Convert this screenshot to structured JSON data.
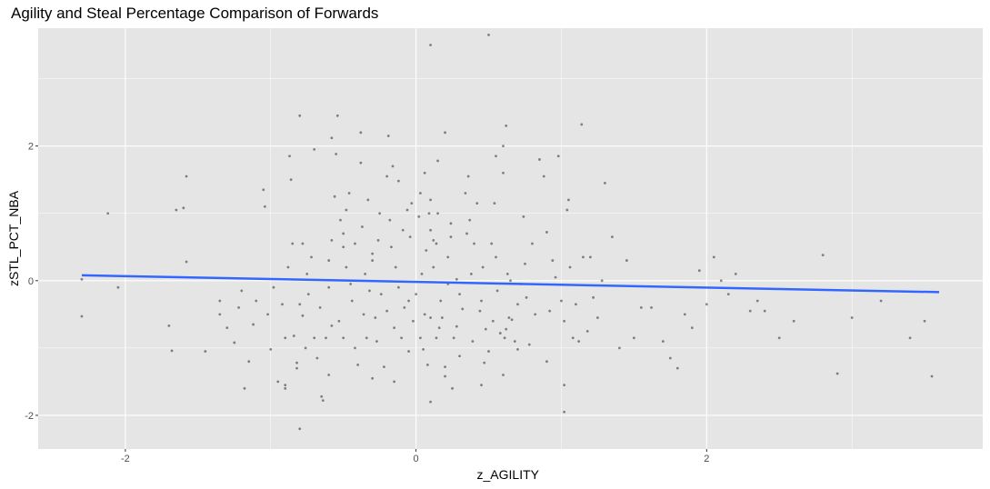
{
  "chart_data": {
    "type": "scatter",
    "title": "Agility and Steal Percentage Comparison of Forwards",
    "xlabel": "z_AGILITY",
    "ylabel": "zSTL_PCT_NBA",
    "xlim": [
      -2.6,
      3.9
    ],
    "ylim": [
      -2.5,
      3.75
    ],
    "x_ticks": [
      -2,
      0,
      2
    ],
    "y_ticks": [
      -2,
      0,
      2
    ],
    "grid": true,
    "point_color": "#000000",
    "trend_color": "#3366FF",
    "panel_color": "#E5E5E5",
    "trend_line": {
      "x": [
        -2.3,
        3.6
      ],
      "y": [
        0.08,
        -0.17
      ]
    },
    "points": [
      [
        -2.3,
        -0.53
      ],
      [
        -2.3,
        0.02
      ],
      [
        -2.12,
        1.0
      ],
      [
        -2.05,
        -0.1
      ],
      [
        -1.7,
        -0.67
      ],
      [
        -1.68,
        -1.04
      ],
      [
        -1.65,
        1.05
      ],
      [
        -1.6,
        1.08
      ],
      [
        -1.58,
        1.55
      ],
      [
        -1.58,
        0.28
      ],
      [
        -1.45,
        -1.05
      ],
      [
        -1.35,
        -0.3
      ],
      [
        -1.35,
        -0.5
      ],
      [
        -1.3,
        -0.7
      ],
      [
        -1.25,
        -0.92
      ],
      [
        -1.22,
        -0.4
      ],
      [
        -1.2,
        -0.15
      ],
      [
        -1.18,
        -1.6
      ],
      [
        -1.15,
        -1.2
      ],
      [
        -1.12,
        -0.65
      ],
      [
        -1.1,
        -0.3
      ],
      [
        -1.05,
        1.35
      ],
      [
        -1.04,
        1.1
      ],
      [
        -1.02,
        -0.5
      ],
      [
        -1.0,
        -1.02
      ],
      [
        -0.98,
        -0.1
      ],
      [
        -0.95,
        -1.5
      ],
      [
        -0.92,
        -0.35
      ],
      [
        -0.9,
        -0.85
      ],
      [
        -0.9,
        -1.55
      ],
      [
        -0.9,
        -1.6
      ],
      [
        -0.88,
        0.2
      ],
      [
        -0.87,
        1.85
      ],
      [
        -0.86,
        1.5
      ],
      [
        -0.85,
        0.55
      ],
      [
        -0.84,
        -0.82
      ],
      [
        -0.82,
        -1.22
      ],
      [
        -0.82,
        -1.3
      ],
      [
        -0.8,
        -0.35
      ],
      [
        -0.78,
        -0.52
      ],
      [
        -0.78,
        0.55
      ],
      [
        -0.76,
        -1.0
      ],
      [
        -0.75,
        0.1
      ],
      [
        -0.74,
        -0.2
      ],
      [
        -0.72,
        0.35
      ],
      [
        -0.7,
        -0.85
      ],
      [
        -0.68,
        -1.15
      ],
      [
        -0.66,
        -0.4
      ],
      [
        -0.65,
        -1.72
      ],
      [
        -0.64,
        -1.78
      ],
      [
        -0.62,
        -0.85
      ],
      [
        -0.6,
        -0.1
      ],
      [
        -0.6,
        0.3
      ],
      [
        -0.58,
        -0.67
      ],
      [
        -0.58,
        0.6
      ],
      [
        -0.56,
        1.25
      ],
      [
        -0.55,
        1.88
      ],
      [
        -0.54,
        2.45
      ],
      [
        -0.53,
        -0.6
      ],
      [
        -0.52,
        0.9
      ],
      [
        -0.5,
        0.7
      ],
      [
        -0.5,
        0.5
      ],
      [
        -0.5,
        -0.85
      ],
      [
        -0.48,
        0.2
      ],
      [
        -0.48,
        1.05
      ],
      [
        -0.46,
        1.3
      ],
      [
        -0.45,
        -0.05
      ],
      [
        -0.44,
        -0.3
      ],
      [
        -0.42,
        0.55
      ],
      [
        -0.42,
        -1.0
      ],
      [
        -0.4,
        -1.25
      ],
      [
        -0.38,
        1.75
      ],
      [
        -0.38,
        2.2
      ],
      [
        -0.37,
        0.8
      ],
      [
        -0.36,
        -0.5
      ],
      [
        -0.35,
        0.1
      ],
      [
        -0.34,
        -0.85
      ],
      [
        -0.33,
        1.2
      ],
      [
        -0.32,
        -0.15
      ],
      [
        -0.3,
        0.4
      ],
      [
        -0.3,
        0.3
      ],
      [
        -0.28,
        -0.55
      ],
      [
        -0.27,
        -0.9
      ],
      [
        -0.26,
        0.6
      ],
      [
        -0.25,
        1.0
      ],
      [
        -0.24,
        -0.2
      ],
      [
        -0.22,
        -1.28
      ],
      [
        -0.2,
        -0.45
      ],
      [
        -0.19,
        2.15
      ],
      [
        -0.18,
        0.9
      ],
      [
        -0.17,
        0.5
      ],
      [
        -0.16,
        1.7
      ],
      [
        -0.15,
        -0.7
      ],
      [
        -0.14,
        0.2
      ],
      [
        -0.12,
        -0.1
      ],
      [
        -0.12,
        1.48
      ],
      [
        -0.1,
        -0.85
      ],
      [
        -0.09,
        0.75
      ],
      [
        -0.08,
        -0.4
      ],
      [
        -0.06,
        1.05
      ],
      [
        -0.05,
        -1.05
      ],
      [
        -0.05,
        -0.3
      ],
      [
        -0.04,
        0.65
      ],
      [
        -0.03,
        1.15
      ],
      [
        -0.02,
        -0.6
      ],
      [
        0.0,
        -0.2
      ],
      [
        0.02,
        0.95
      ],
      [
        0.03,
        1.3
      ],
      [
        0.03,
        -0.85
      ],
      [
        0.04,
        0.1
      ],
      [
        0.05,
        -1.02
      ],
      [
        0.06,
        -0.5
      ],
      [
        0.06,
        1.6
      ],
      [
        0.07,
        0.45
      ],
      [
        0.08,
        -1.25
      ],
      [
        0.09,
        1.0
      ],
      [
        0.1,
        1.2
      ],
      [
        0.1,
        0.75
      ],
      [
        0.1,
        -0.55
      ],
      [
        0.12,
        0.2
      ],
      [
        0.12,
        0.6
      ],
      [
        0.14,
        -0.85
      ],
      [
        0.14,
        0.55
      ],
      [
        0.15,
        1.0
      ],
      [
        0.16,
        -0.7
      ],
      [
        0.17,
        -0.3
      ],
      [
        0.18,
        -0.55
      ],
      [
        0.2,
        -1.28
      ],
      [
        0.2,
        -1.42
      ],
      [
        0.22,
        0.35
      ],
      [
        0.22,
        -0.05
      ],
      [
        0.24,
        0.65
      ],
      [
        0.24,
        0.85
      ],
      [
        0.25,
        -1.6
      ],
      [
        0.26,
        -0.85
      ],
      [
        0.28,
        -0.68
      ],
      [
        0.28,
        0.02
      ],
      [
        0.3,
        -0.2
      ],
      [
        0.3,
        -1.12
      ],
      [
        0.32,
        -0.42
      ],
      [
        0.34,
        1.3
      ],
      [
        0.35,
        0.7
      ],
      [
        0.36,
        1.55
      ],
      [
        0.37,
        0.9
      ],
      [
        0.38,
        0.1
      ],
      [
        0.39,
        -0.9
      ],
      [
        0.4,
        0.55
      ],
      [
        0.42,
        1.15
      ],
      [
        0.44,
        -0.45
      ],
      [
        0.45,
        -0.3
      ],
      [
        0.46,
        0.2
      ],
      [
        0.47,
        -1.22
      ],
      [
        0.48,
        -0.72
      ],
      [
        0.5,
        -1.05
      ],
      [
        0.52,
        0.55
      ],
      [
        0.53,
        -0.6
      ],
      [
        0.54,
        1.15
      ],
      [
        0.55,
        0.35
      ],
      [
        0.56,
        -0.15
      ],
      [
        0.58,
        -0.78
      ],
      [
        0.6,
        2.0
      ],
      [
        0.6,
        1.6
      ],
      [
        0.61,
        -0.85
      ],
      [
        0.62,
        -0.72
      ],
      [
        0.63,
        0.1
      ],
      [
        0.64,
        -0.55
      ],
      [
        0.65,
        0.0
      ],
      [
        0.66,
        -0.58
      ],
      [
        0.68,
        -0.9
      ],
      [
        0.7,
        -1.02
      ],
      [
        0.7,
        -0.35
      ],
      [
        0.72,
        -0.05
      ],
      [
        0.74,
        0.95
      ],
      [
        0.75,
        0.25
      ],
      [
        0.76,
        -0.25
      ],
      [
        0.78,
        -0.95
      ],
      [
        0.8,
        0.55
      ],
      [
        0.82,
        -0.5
      ],
      [
        0.85,
        1.8
      ],
      [
        0.88,
        1.55
      ],
      [
        0.9,
        0.72
      ],
      [
        0.92,
        -0.45
      ],
      [
        0.94,
        0.3
      ],
      [
        0.96,
        0.05
      ],
      [
        0.98,
        1.85
      ],
      [
        1.0,
        -0.3
      ],
      [
        1.02,
        -0.6
      ],
      [
        1.04,
        1.05
      ],
      [
        1.05,
        1.2
      ],
      [
        1.06,
        0.2
      ],
      [
        1.08,
        -0.85
      ],
      [
        1.1,
        -0.35
      ],
      [
        1.12,
        -0.9
      ],
      [
        1.14,
        2.32
      ],
      [
        1.15,
        0.35
      ],
      [
        1.18,
        -0.75
      ],
      [
        1.2,
        0.35
      ],
      [
        1.22,
        -0.25
      ],
      [
        1.25,
        -0.55
      ],
      [
        1.28,
        0.0
      ],
      [
        1.3,
        1.45
      ],
      [
        1.35,
        0.65
      ],
      [
        1.4,
        -1.0
      ],
      [
        1.45,
        0.3
      ],
      [
        1.5,
        -0.85
      ],
      [
        1.55,
        -0.4
      ],
      [
        1.62,
        -0.4
      ],
      [
        1.7,
        -0.9
      ],
      [
        1.75,
        -1.15
      ],
      [
        1.8,
        -1.3
      ],
      [
        1.85,
        -0.5
      ],
      [
        1.9,
        -0.7
      ],
      [
        1.95,
        0.15
      ],
      [
        2.0,
        -0.35
      ],
      [
        2.05,
        0.35
      ],
      [
        2.1,
        0.0
      ],
      [
        2.15,
        -0.2
      ],
      [
        2.2,
        0.1
      ],
      [
        2.3,
        -0.45
      ],
      [
        2.35,
        -0.3
      ],
      [
        2.4,
        -0.45
      ],
      [
        2.5,
        -0.85
      ],
      [
        2.6,
        -0.6
      ],
      [
        2.8,
        0.38
      ],
      [
        2.9,
        -1.38
      ],
      [
        3.0,
        -0.55
      ],
      [
        3.2,
        -0.3
      ],
      [
        3.4,
        -0.85
      ],
      [
        3.5,
        -0.6
      ],
      [
        3.55,
        -1.42
      ],
      [
        0.1,
        3.5
      ],
      [
        0.5,
        3.65
      ],
      [
        0.2,
        2.2
      ],
      [
        -0.8,
        2.45
      ],
      [
        -0.58,
        2.12
      ],
      [
        0.55,
        1.85
      ],
      [
        0.62,
        2.3
      ],
      [
        0.15,
        1.78
      ],
      [
        -0.2,
        1.55
      ],
      [
        -0.7,
        1.95
      ],
      [
        -0.15,
        -1.5
      ],
      [
        -0.8,
        -2.2
      ],
      [
        0.1,
        -1.8
      ],
      [
        0.45,
        -1.55
      ],
      [
        1.02,
        -1.95
      ],
      [
        1.02,
        -1.55
      ],
      [
        0.9,
        -1.2
      ],
      [
        -0.3,
        -1.45
      ],
      [
        -0.6,
        -1.4
      ],
      [
        0.6,
        -1.4
      ]
    ]
  }
}
